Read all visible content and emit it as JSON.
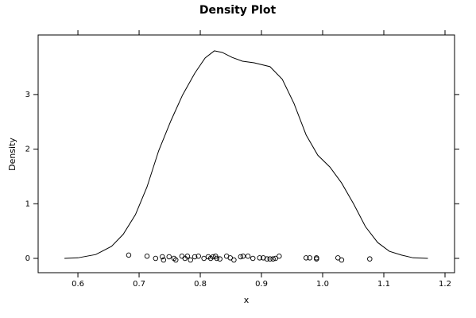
{
  "chart_data": {
    "type": "density",
    "title": "Density Plot",
    "x_label": "x",
    "y_label": "Density",
    "color": "#000000",
    "xlim": [
      0.535,
      1.2156
    ],
    "ylim": [
      -0.262,
      4.09
    ],
    "xticks": [
      0.6,
      0.7,
      0.8,
      0.9,
      {
        "value": 1,
        "label": "1.0"
      },
      1.1,
      1.2
    ],
    "yticks": [
      0,
      1,
      2,
      3
    ],
    "curve": {
      "x": [
        0.578,
        0.6,
        0.629,
        0.655,
        0.674,
        0.694,
        0.713,
        0.732,
        0.752,
        0.771,
        0.791,
        0.808,
        0.823,
        0.836,
        0.852,
        0.869,
        0.888,
        0.914,
        0.934,
        0.953,
        0.973,
        0.992,
        1.012,
        1.031,
        1.051,
        1.07,
        1.09,
        1.109,
        1.129,
        1.148,
        1.172
      ],
      "values": [
        0,
        0.01,
        0.07,
        0.22,
        0.44,
        0.8,
        1.31,
        1.97,
        2.52,
        2.99,
        3.39,
        3.67,
        3.8,
        3.77,
        3.68,
        3.61,
        3.58,
        3.51,
        3.28,
        2.84,
        2.26,
        1.89,
        1.67,
        1.38,
        0.99,
        0.58,
        0.29,
        0.13,
        0.06,
        0.01,
        0
      ]
    },
    "points": {
      "x": [
        0.683,
        0.713,
        0.727,
        0.738,
        0.74,
        0.749,
        0.757,
        0.76,
        0.77,
        0.775,
        0.779,
        0.784,
        0.791,
        0.797,
        0.806,
        0.813,
        0.817,
        0.821,
        0.825,
        0.827,
        0.832,
        0.843,
        0.849,
        0.855,
        0.866,
        0.87,
        0.878,
        0.886,
        0.897,
        0.903,
        0.909,
        0.914,
        0.919,
        0.923,
        0.929,
        0.973,
        0.979,
        0.99,
        0.99,
        1.025,
        1.031,
        1.077
      ],
      "values": [
        0.06,
        0.04,
        0,
        0.03,
        -0.03,
        0.03,
        0,
        -0.03,
        0.04,
        0,
        0.04,
        -0.03,
        0.03,
        0.04,
        0,
        0.03,
        0,
        0.03,
        0.04,
        0,
        -0.01,
        0.04,
        0.01,
        -0.03,
        0.03,
        0.04,
        0.04,
        0,
        0.01,
        0.01,
        -0.01,
        -0.01,
        -0.01,
        0,
        0.04,
        0.01,
        0.01,
        0.01,
        -0.01,
        0.01,
        -0.03,
        -0.01
      ]
    }
  }
}
